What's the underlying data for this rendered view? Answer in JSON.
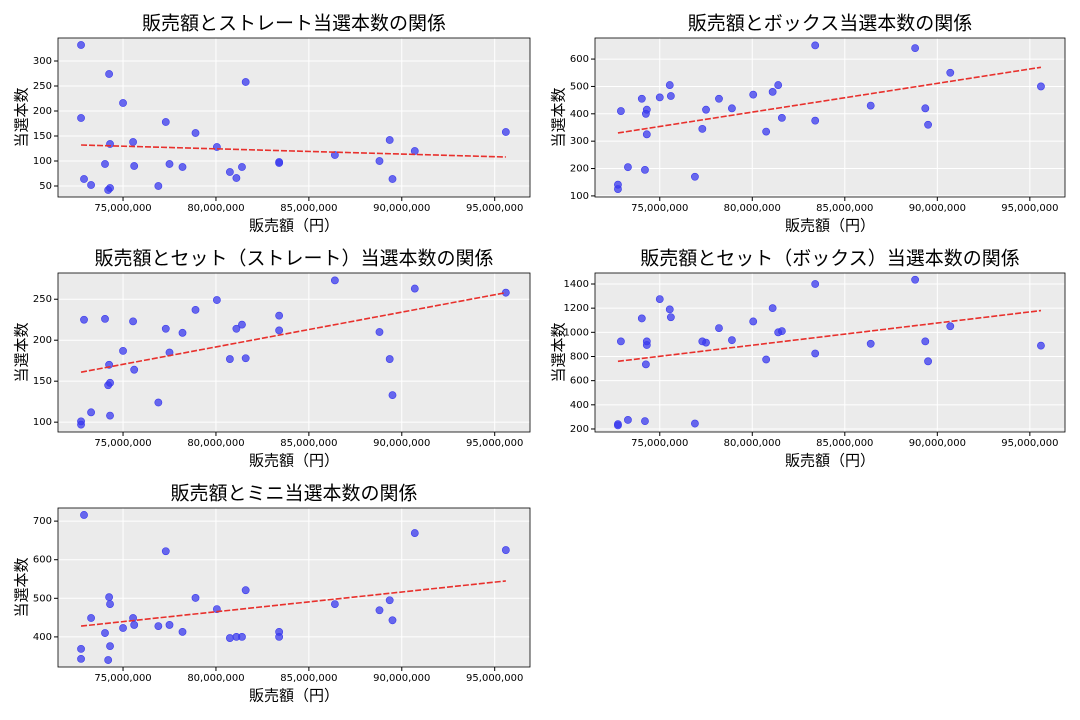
{
  "chart_data": [
    {
      "type": "scatter",
      "title": "販売額とストレート当選本数の関係",
      "xlabel": "販売額（円）",
      "ylabel": "当選本数",
      "x": [
        72740000,
        72740000,
        72900000,
        73280000,
        74030000,
        74200000,
        74250000,
        74300000,
        74300000,
        75000000,
        75540000,
        75600000,
        76900000,
        77300000,
        77500000,
        78200000,
        78900000,
        80050000,
        80750000,
        81100000,
        81400000,
        81600000,
        83400000,
        83400000,
        86400000,
        88800000,
        89350000,
        89500000,
        90700000,
        95600000
      ],
      "values": [
        332,
        186,
        64,
        52,
        94,
        42,
        274,
        134,
        46,
        216,
        138,
        90,
        50,
        178,
        94,
        88,
        156,
        128,
        78,
        66,
        88,
        258,
        98,
        96,
        112,
        100,
        142,
        64,
        120,
        158
      ],
      "color": "#3a3aee",
      "trend": {
        "x": [
          72740000,
          95600000
        ],
        "values": [
          132,
          108
        ],
        "color": "#e8302c"
      },
      "xlim": [
        71500000,
        96900000
      ],
      "xticks": [
        {
          "value": 75000000,
          "label": "75,000,000"
        },
        {
          "value": 80000000,
          "label": "80,000,000"
        },
        {
          "value": 85000000,
          "label": "85,000,000"
        },
        {
          "value": 90000000,
          "label": "90,000,000"
        },
        {
          "value": 95000000,
          "label": "95,000,000"
        }
      ],
      "ylim": [
        28,
        346
      ],
      "yticks": [
        50,
        100,
        150,
        200,
        250,
        300
      ],
      "grid": true
    },
    {
      "type": "scatter",
      "title": "販売額とボックス当選本数の関係",
      "xlabel": "販売額（円）",
      "ylabel": "当選本数",
      "x": [
        72740000,
        72740000,
        72900000,
        73280000,
        74030000,
        74200000,
        74250000,
        74300000,
        74300000,
        75000000,
        75540000,
        75600000,
        76900000,
        77300000,
        77500000,
        78200000,
        78900000,
        80050000,
        80750000,
        81100000,
        81400000,
        81600000,
        83400000,
        83400000,
        86400000,
        88800000,
        89350000,
        89500000,
        90700000,
        95600000
      ],
      "values": [
        125,
        141,
        410,
        205,
        455,
        195,
        400,
        325,
        415,
        460,
        505,
        465,
        170,
        345,
        415,
        455,
        420,
        470,
        335,
        480,
        505,
        385,
        650,
        375,
        430,
        640,
        420,
        360,
        550,
        500
      ],
      "color": "#3a3aee",
      "trend": {
        "x": [
          72740000,
          95600000
        ],
        "values": [
          330,
          570
        ],
        "color": "#e8302c"
      },
      "xlim": [
        71500000,
        96900000
      ],
      "xticks": [
        {
          "value": 75000000,
          "label": "75,000,000"
        },
        {
          "value": 80000000,
          "label": "80,000,000"
        },
        {
          "value": 85000000,
          "label": "85,000,000"
        },
        {
          "value": 90000000,
          "label": "90,000,000"
        },
        {
          "value": 95000000,
          "label": "95,000,000"
        }
      ],
      "ylim": [
        96,
        677
      ],
      "yticks": [
        100,
        200,
        300,
        400,
        500,
        600
      ],
      "grid": true
    },
    {
      "type": "scatter",
      "title": "販売額とセット（ストレート）当選本数の関係",
      "xlabel": "販売額（円）",
      "ylabel": "当選本数",
      "x": [
        72740000,
        72740000,
        72900000,
        73280000,
        74030000,
        74200000,
        74250000,
        74300000,
        74300000,
        75000000,
        75540000,
        75600000,
        76900000,
        77300000,
        77500000,
        78200000,
        78900000,
        80050000,
        80750000,
        81100000,
        81400000,
        81600000,
        83400000,
        83400000,
        86400000,
        88800000,
        89350000,
        89500000,
        90700000,
        95600000
      ],
      "values": [
        101,
        97,
        225,
        112,
        226,
        145,
        170,
        148,
        108,
        187,
        223,
        164,
        124,
        214,
        185,
        209,
        237,
        249,
        177,
        214,
        219,
        178,
        230,
        212,
        273,
        210,
        177,
        133,
        263,
        258
      ],
      "color": "#3a3aee",
      "trend": {
        "x": [
          72740000,
          95600000
        ],
        "values": [
          161,
          258
        ],
        "color": "#e8302c"
      },
      "xlim": [
        71500000,
        96900000
      ],
      "xticks": [
        {
          "value": 75000000,
          "label": "75,000,000"
        },
        {
          "value": 80000000,
          "label": "80,000,000"
        },
        {
          "value": 85000000,
          "label": "85,000,000"
        },
        {
          "value": 90000000,
          "label": "90,000,000"
        },
        {
          "value": 95000000,
          "label": "95,000,000"
        }
      ],
      "ylim": [
        88,
        282
      ],
      "yticks": [
        100,
        150,
        200,
        250
      ],
      "grid": true
    },
    {
      "type": "scatter",
      "title": "販売額とセット（ボックス）当選本数の関係",
      "xlabel": "販売額（円）",
      "ylabel": "当選本数",
      "x": [
        72740000,
        72740000,
        72900000,
        73280000,
        74030000,
        74200000,
        74250000,
        74300000,
        74300000,
        75000000,
        75540000,
        75600000,
        76900000,
        77300000,
        77500000,
        78200000,
        78900000,
        80050000,
        80750000,
        81100000,
        81400000,
        81600000,
        83400000,
        83400000,
        86400000,
        88800000,
        89350000,
        89500000,
        90700000,
        95600000
      ],
      "values": [
        240,
        230,
        925,
        275,
        1115,
        265,
        735,
        925,
        895,
        1275,
        1190,
        1125,
        245,
        925,
        915,
        1035,
        935,
        1090,
        775,
        1200,
        1000,
        1010,
        1400,
        825,
        905,
        1435,
        925,
        760,
        1050,
        890
      ],
      "color": "#3a3aee",
      "trend": {
        "x": [
          72740000,
          95600000
        ],
        "values": [
          760,
          1180
        ],
        "color": "#e8302c"
      },
      "xlim": [
        71500000,
        96900000
      ],
      "xticks": [
        {
          "value": 75000000,
          "label": "75,000,000"
        },
        {
          "value": 80000000,
          "label": "80,000,000"
        },
        {
          "value": 85000000,
          "label": "85,000,000"
        },
        {
          "value": 90000000,
          "label": "90,000,000"
        },
        {
          "value": 95000000,
          "label": "95,000,000"
        }
      ],
      "ylim": [
        175,
        1491
      ],
      "yticks": [
        200,
        400,
        600,
        800,
        1000,
        1200,
        1400
      ],
      "grid": true
    },
    {
      "type": "scatter",
      "title": "販売額とミニ当選本数の関係",
      "xlabel": "販売額（円）",
      "ylabel": "当選本数",
      "x": [
        72740000,
        72740000,
        72900000,
        73280000,
        74030000,
        74200000,
        74250000,
        74300000,
        74300000,
        75000000,
        75540000,
        75600000,
        76900000,
        77300000,
        77500000,
        78200000,
        78900000,
        80050000,
        80750000,
        81100000,
        81400000,
        81600000,
        83400000,
        83400000,
        86400000,
        88800000,
        89350000,
        89500000,
        90700000,
        95600000
      ],
      "values": [
        369,
        343,
        716,
        449,
        410,
        340,
        503,
        485,
        376,
        423,
        449,
        431,
        428,
        622,
        431,
        413,
        501,
        472,
        397,
        400,
        400,
        521,
        413,
        400,
        485,
        469,
        495,
        443,
        669,
        625
      ],
      "color": "#3a3aee",
      "trend": {
        "x": [
          72740000,
          95600000
        ],
        "values": [
          428,
          545
        ],
        "color": "#e8302c"
      },
      "xlim": [
        71500000,
        96900000
      ],
      "xticks": [
        {
          "value": 75000000,
          "label": "75,000,000"
        },
        {
          "value": 80000000,
          "label": "80,000,000"
        },
        {
          "value": 85000000,
          "label": "85,000,000"
        },
        {
          "value": 90000000,
          "label": "90,000,000"
        },
        {
          "value": 95000000,
          "label": "95,000,000"
        }
      ],
      "ylim": [
        322,
        734
      ],
      "yticks": [
        400,
        500,
        600,
        700
      ],
      "grid": true
    }
  ]
}
